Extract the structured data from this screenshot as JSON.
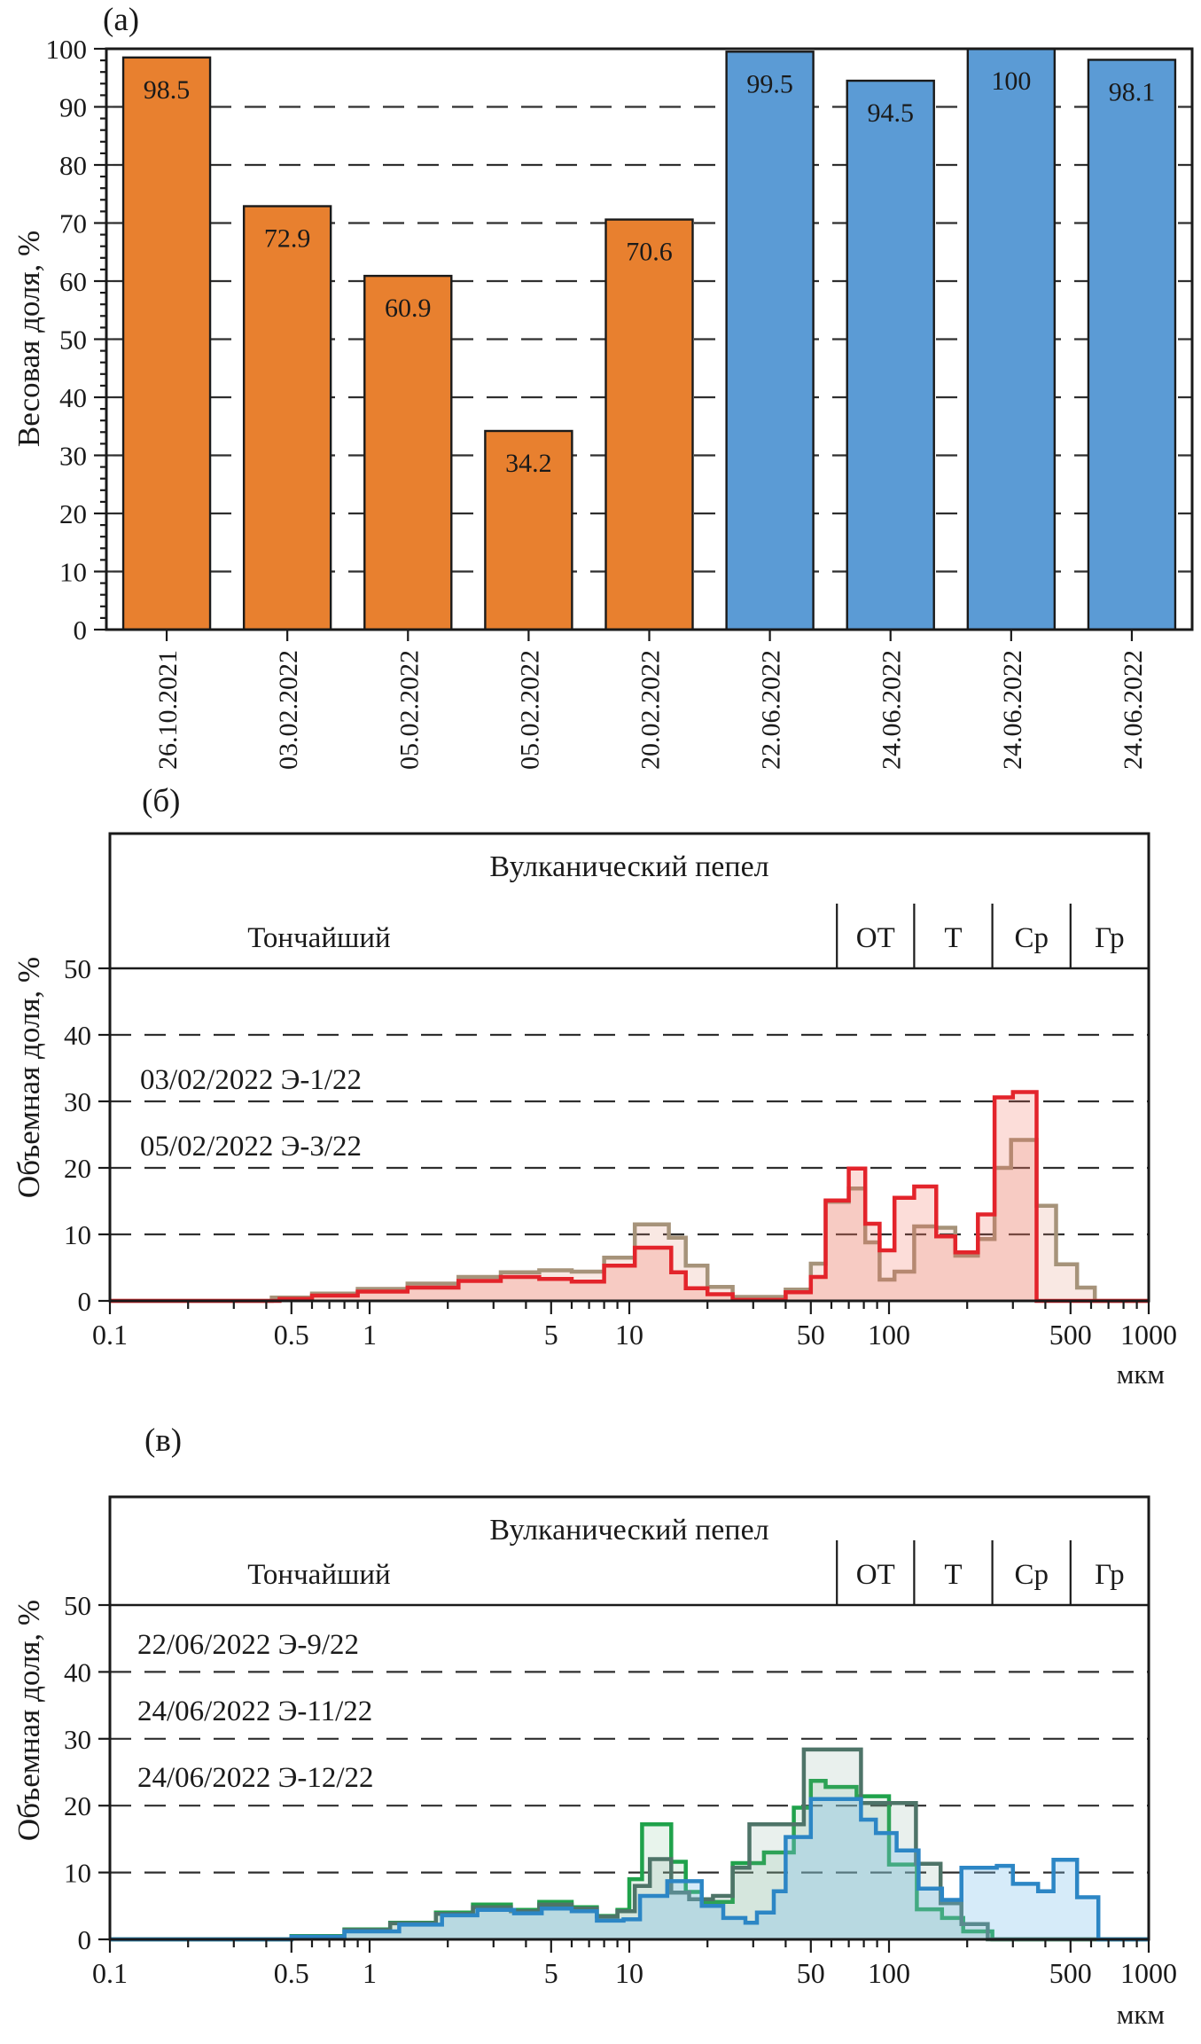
{
  "figure": {
    "unit_label": "мкм"
  },
  "chart_data": [
    {
      "id": "a",
      "type": "bar",
      "panel_label": "(а)",
      "ylabel": "Весовая доля, %",
      "ylim": [
        0,
        100
      ],
      "y_tick_step": 10,
      "grid": "dashed horizontal at 10..90",
      "categories": [
        "26.10.2021",
        "03.02.2022",
        "05.02.2022",
        "05.02.2022",
        "20.02.2022",
        "22.06.2022",
        "24.06.2022",
        "24.06.2022",
        "24.06.2022"
      ],
      "values": [
        98.5,
        72.9,
        60.9,
        34.2,
        70.6,
        99.5,
        94.5,
        100,
        98.1
      ],
      "value_labels": [
        "98.5",
        "72.9",
        "60.9",
        "34.2",
        "70.6",
        "99.5",
        "94.5",
        "100",
        "98.1"
      ],
      "bar_colors": [
        "#E8802F",
        "#E8802F",
        "#E8802F",
        "#E8802F",
        "#E8802F",
        "#5B9BD5",
        "#5B9BD5",
        "#5B9BD5",
        "#5B9BD5"
      ],
      "group_colors": {
        "orange_2021_2022_winter": "#E8802F",
        "blue_june_2022": "#5B9BD5"
      }
    },
    {
      "id": "b",
      "type": "step-area",
      "panel_label": "(б)",
      "ylabel": "Объемная доля, %",
      "xlabel": "мкм",
      "title": "Вулканический пепел",
      "fine_label": "Тончайший",
      "class_labels": [
        "ОТ",
        "Т",
        "Ср",
        "Гр"
      ],
      "class_boundaries_um": [
        63,
        125,
        250,
        500
      ],
      "ylim": [
        0,
        50
      ],
      "xlim": [
        0.1,
        1000
      ],
      "xscale": "log",
      "x_ticks": [
        "0.1",
        "0.5",
        "1",
        "5",
        "10",
        "50",
        "100",
        "500",
        "1000"
      ],
      "legend": [
        "03/02/2022 Э-1/22",
        "05/02/2022 Э-3/22"
      ],
      "series": [
        {
          "name": "05/02/2022 Э-3/22",
          "color": "#A6937A",
          "fill": "rgba(225,140,115,0.20)",
          "steps": [
            [
              0.42,
              0.5
            ],
            [
              0.6,
              1.1
            ],
            [
              0.9,
              1.8
            ],
            [
              1.4,
              2.6
            ],
            [
              2.2,
              3.6
            ],
            [
              3.2,
              4.3
            ],
            [
              4.5,
              4.6
            ],
            [
              6,
              4.4
            ],
            [
              8,
              6.5
            ],
            [
              10.5,
              11.5
            ],
            [
              14.2,
              9.5
            ],
            [
              16.5,
              5.3
            ],
            [
              20,
              2.1
            ],
            [
              25,
              0.6
            ],
            [
              40,
              1.7
            ],
            [
              50,
              5.6
            ],
            [
              57,
              14.9
            ],
            [
              70,
              16.9
            ],
            [
              81,
              8.8
            ],
            [
              92,
              3.2
            ],
            [
              105,
              4.4
            ],
            [
              125,
              11.2
            ],
            [
              152,
              11.0
            ],
            [
              180,
              6.8
            ],
            [
              220,
              9.3
            ],
            [
              255,
              20.0
            ],
            [
              295,
              24.2
            ],
            [
              370,
              14.3
            ],
            [
              440,
              5.5
            ],
            [
              530,
              2.0
            ],
            [
              620,
              0
            ]
          ]
        },
        {
          "name": "03/02/2022 Э-1/22",
          "color": "#E3242B",
          "fill": "rgba(240,100,80,0.22)",
          "steps": [
            [
              0.45,
              0.3
            ],
            [
              0.6,
              0.8
            ],
            [
              0.9,
              1.4
            ],
            [
              1.4,
              2.0
            ],
            [
              2.2,
              3.0
            ],
            [
              3.2,
              3.6
            ],
            [
              4.5,
              3.3
            ],
            [
              6,
              2.9
            ],
            [
              8,
              5.3
            ],
            [
              10.5,
              8.0
            ],
            [
              14.5,
              4.3
            ],
            [
              16.5,
              1.9
            ],
            [
              20,
              1.0
            ],
            [
              25,
              0.15
            ],
            [
              40,
              1.3
            ],
            [
              50,
              3.6
            ],
            [
              57,
              15.1
            ],
            [
              70,
              19.9
            ],
            [
              81,
              11.6
            ],
            [
              92,
              7.6
            ],
            [
              105,
              15.5
            ],
            [
              125,
              17.2
            ],
            [
              152,
              9.7
            ],
            [
              180,
              7.3
            ],
            [
              220,
              13.0
            ],
            [
              255,
              30.6
            ],
            [
              300,
              31.4
            ],
            [
              370,
              0
            ]
          ]
        }
      ]
    },
    {
      "id": "v",
      "type": "step-area",
      "panel_label": "(в)",
      "ylabel": "Объемная доля, %",
      "xlabel": "мкм",
      "title": "Вулканический пепел",
      "fine_label": "Тончайший",
      "class_labels": [
        "ОТ",
        "Т",
        "Ср",
        "Гр"
      ],
      "class_boundaries_um": [
        63,
        125,
        250,
        500
      ],
      "ylim": [
        0,
        50
      ],
      "xlim": [
        0.1,
        1000
      ],
      "xscale": "log",
      "x_ticks": [
        "0.1",
        "0.5",
        "1",
        "5",
        "10",
        "50",
        "100",
        "500",
        "1000"
      ],
      "legend": [
        "22/06/2022 Э-9/22",
        "24/06/2022 Э-11/22",
        "24/06/2022 Э-12/22"
      ],
      "series": [
        {
          "name": "22/06/2022 Э-9/22",
          "color": "#1FA24B",
          "fill": "rgba(140,200,160,0.20)",
          "steps": [
            [
              0.5,
              0.5
            ],
            [
              0.8,
              1.5
            ],
            [
              1.2,
              2.5
            ],
            [
              1.8,
              4.0
            ],
            [
              2.5,
              5.2
            ],
            [
              3.5,
              4.4
            ],
            [
              4.5,
              5.6
            ],
            [
              6,
              4.8
            ],
            [
              7.5,
              3.5
            ],
            [
              9,
              4.4
            ],
            [
              10,
              9.0
            ],
            [
              11.2,
              17.2
            ],
            [
              14.5,
              11.6
            ],
            [
              16.5,
              7.1
            ],
            [
              19,
              5.6
            ],
            [
              25,
              11.4
            ],
            [
              33,
              13.0
            ],
            [
              43,
              19.7
            ],
            [
              50,
              23.7
            ],
            [
              57,
              22.8
            ],
            [
              75,
              21.4
            ],
            [
              100,
              11.2
            ],
            [
              128,
              4.5
            ],
            [
              160,
              3.2
            ],
            [
              193,
              1.2
            ],
            [
              250,
              0
            ]
          ]
        },
        {
          "name": "24/06/2022 Э-11/22",
          "color": "#4E7468",
          "fill": "rgba(120,160,145,0.16)",
          "steps": [
            [
              0.5,
              0.4
            ],
            [
              0.8,
              1.4
            ],
            [
              1.2,
              2.4
            ],
            [
              1.8,
              3.8
            ],
            [
              2.5,
              4.8
            ],
            [
              3.5,
              4.2
            ],
            [
              4.5,
              5.2
            ],
            [
              6,
              4.6
            ],
            [
              7.5,
              3.4
            ],
            [
              9,
              4.2
            ],
            [
              10.5,
              8.0
            ],
            [
              12,
              12.0
            ],
            [
              14.5,
              7.0
            ],
            [
              17,
              6.0
            ],
            [
              21,
              6.5
            ],
            [
              25,
              10.7
            ],
            [
              29,
              17.2
            ],
            [
              47,
              28.4
            ],
            [
              78,
              20.4
            ],
            [
              127,
              11.3
            ],
            [
              158,
              5.4
            ],
            [
              190,
              2.3
            ],
            [
              240,
              0
            ]
          ]
        },
        {
          "name": "24/06/2022 Э-12/22",
          "color": "#2C86C5",
          "fill": "rgba(120,190,235,0.30)",
          "steps": [
            [
              0.5,
              0.4
            ],
            [
              0.8,
              1.2
            ],
            [
              1.3,
              2.2
            ],
            [
              1.9,
              3.6
            ],
            [
              2.6,
              4.4
            ],
            [
              3.6,
              3.9
            ],
            [
              4.6,
              4.6
            ],
            [
              6,
              4.2
            ],
            [
              7.5,
              2.8
            ],
            [
              9.5,
              3.0
            ],
            [
              11,
              6.5
            ],
            [
              14,
              8.7
            ],
            [
              19,
              5.0
            ],
            [
              23,
              3.2
            ],
            [
              28,
              2.5
            ],
            [
              31,
              4.0
            ],
            [
              36,
              7.2
            ],
            [
              40,
              15.3
            ],
            [
              50,
              21.0
            ],
            [
              78,
              17.9
            ],
            [
              89,
              15.9
            ],
            [
              107,
              13.3
            ],
            [
              130,
              7.6
            ],
            [
              160,
              5.9
            ],
            [
              190,
              10.7
            ],
            [
              260,
              11.0
            ],
            [
              300,
              8.3
            ],
            [
              375,
              7.2
            ],
            [
              430,
              11.9
            ],
            [
              530,
              6.3
            ],
            [
              640,
              0
            ]
          ]
        }
      ]
    }
  ]
}
